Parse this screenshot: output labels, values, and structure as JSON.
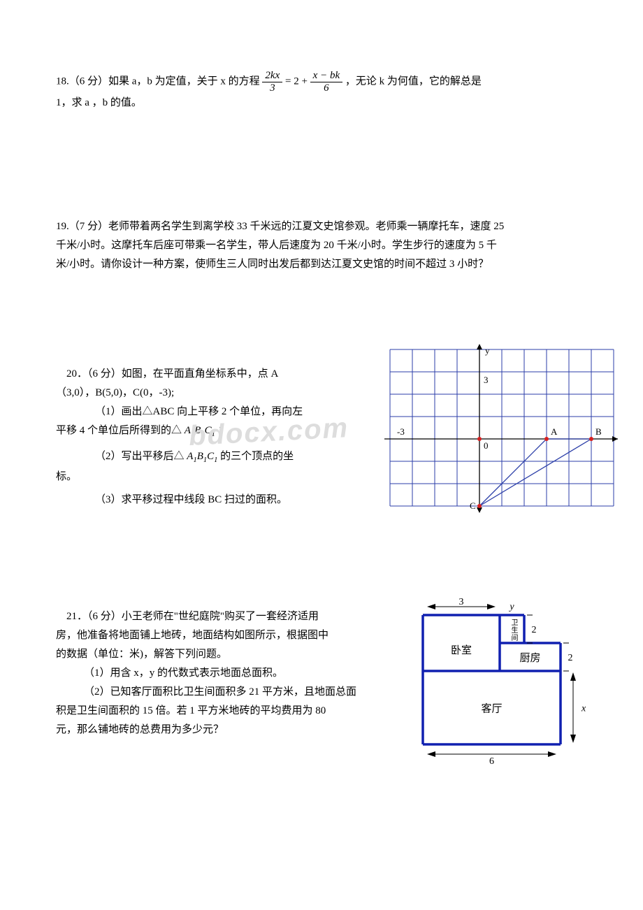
{
  "watermark_text": "bdocx.com",
  "q18": {
    "text_a": "18.（6 分）如果 a，b 为定值，关于 x 的方程",
    "frac1_num": "2kx",
    "frac1_den": "3",
    "mid": " = 2 + ",
    "frac2_num": "x − bk",
    "frac2_den": "6",
    "text_b": "，无论 k 为何值，它的解总是",
    "text_c": "1，求 a ，b 的值。"
  },
  "q19": {
    "line1": "19.（7 分）老师带着两名学生到离学校 33 千米远的江夏文史馆参观。老师乘一辆摩托车，速度 25",
    "line2": "千米/小时。这摩托车后座可带乘一名学生，带人后速度为 20 千米/小时。学生步行的速度为 5 千",
    "line3": "米/小时。请你设计一种方案，使师生三人同时出发后都到达江夏文史馆的时间不超过 3 小时？"
  },
  "q20": {
    "line1a": "20．（6 分）如图，在平面直角坐标系中，点 A",
    "line1b": "（3,0），B(5,0)，C(0，-3);",
    "line2a": "（1）画出△ABC 向上平移 2 个单位，再向左",
    "line2b": "平移 4 个单位后所得到的△",
    "a1b1c1": "A₁B₁C₁",
    "line2c": "；",
    "line3a": "（2）写出平移后△ ",
    "line3b": " 的三个顶点的坐",
    "line3c": "标。",
    "line4": "（3）求平移过程中线段 BC 扫过的面积。",
    "axis_labels": {
      "y": "y",
      "x3": "3",
      "xm3": "-3",
      "o": "0",
      "A": "A",
      "B": "B",
      "C": "C"
    },
    "graph": {
      "grid_color": "#2b3ea8",
      "axis_color": "#000000",
      "line_color": "#2b3ea8",
      "point_color": "#d62020",
      "cell": 32,
      "cols": 10,
      "rows": 7
    }
  },
  "q21": {
    "line1": "21．（6 分）小王老师在\"世纪庭院\"购买了一套经济适用",
    "line2": "房，他准备将地面铺上地砖，地面结构如图所示，根据图中",
    "line3": "的数据（单位：米)，解答下列问题。",
    "line4": "（1）用含 x，y 的代数式表示地面总面积。",
    "line5": "（2）已知客厅面积比卫生间面积多 21 平方米，且地面总面",
    "line6": "积是卫生间面积的 15 倍。若 1 平方米地砖的平均费用为 80",
    "line7": "元，那么铺地砖的总费用为多少元？",
    "floor": {
      "wall_color": "#1020b0",
      "rooms": {
        "bedroom": "卧室",
        "bath": "卫生间",
        "kitchen": "厨房",
        "living": "客厅"
      },
      "dims": {
        "top3": "3",
        "y": "y",
        "h2a": "2",
        "h2b": "2",
        "x": "x",
        "bot6": "6"
      }
    }
  }
}
